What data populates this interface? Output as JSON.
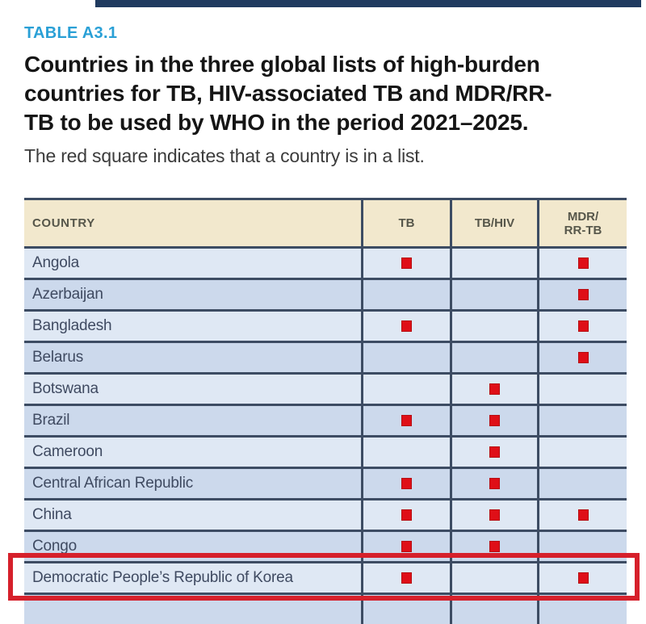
{
  "report": {
    "table_label": "TABLE A3.1",
    "title_lines": [
      "Countries in the three global lists of high-burden",
      "countries for TB, HIV-associated TB and MDR/RR-",
      "TB to be used by WHO in the period 2021–2025."
    ],
    "subtitle": "The red square indicates that a country is in a list.",
    "label_color": "#2aa0d6"
  },
  "table": {
    "header": {
      "country": "COUNTRY",
      "tb": "TB",
      "tbhiv": "TB/HIV",
      "mdr_line1": "MDR/",
      "mdr_line2": "RR-TB"
    },
    "marker_color": "#df0f17",
    "rows": [
      {
        "country": "Angola",
        "tb": true,
        "tbhiv": false,
        "mdr": true
      },
      {
        "country": "Azerbaijan",
        "tb": false,
        "tbhiv": false,
        "mdr": true
      },
      {
        "country": "Bangladesh",
        "tb": true,
        "tbhiv": false,
        "mdr": true
      },
      {
        "country": "Belarus",
        "tb": false,
        "tbhiv": false,
        "mdr": true
      },
      {
        "country": "Botswana",
        "tb": false,
        "tbhiv": true,
        "mdr": false
      },
      {
        "country": "Brazil",
        "tb": true,
        "tbhiv": true,
        "mdr": false
      },
      {
        "country": "Cameroon",
        "tb": false,
        "tbhiv": true,
        "mdr": false
      },
      {
        "country": "Central African Republic",
        "tb": true,
        "tbhiv": true,
        "mdr": false
      },
      {
        "country": "China",
        "tb": true,
        "tbhiv": true,
        "mdr": true
      },
      {
        "country": "Congo",
        "tb": true,
        "tbhiv": true,
        "mdr": false
      },
      {
        "country": "Democratic People’s Republic of Korea",
        "tb": true,
        "tbhiv": false,
        "mdr": true,
        "highlighted": true
      },
      {
        "country": "",
        "tb": false,
        "tbhiv": false,
        "mdr": false,
        "partial": true
      }
    ],
    "highlight": {
      "country": "Democratic People’s Republic of Korea",
      "color": "#d6202b"
    }
  }
}
